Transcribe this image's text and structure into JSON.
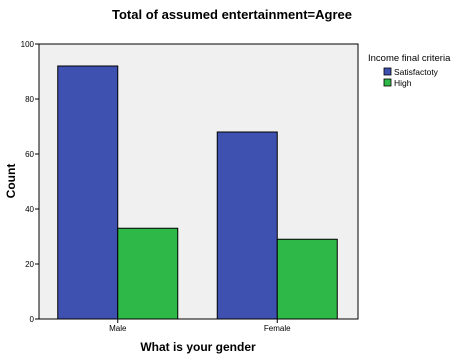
{
  "chart_data": {
    "type": "bar",
    "title": "Total of assumed entertainment=Agree",
    "xlabel": "What is your gender",
    "ylabel": "Count",
    "categories": [
      "Male",
      "Female"
    ],
    "series": [
      {
        "name": "Satisfactoty",
        "values": [
          92,
          68
        ],
        "color": "#3f51b0"
      },
      {
        "name": "High",
        "values": [
          33,
          29
        ],
        "color": "#2eb848"
      }
    ],
    "ylim": [
      0,
      100
    ],
    "yticks": [
      0,
      20,
      40,
      60,
      80,
      100
    ],
    "grid": false,
    "plot_background": "#f0f0f0",
    "legend": {
      "title": "Income final criteria",
      "placement": "top-right"
    }
  }
}
